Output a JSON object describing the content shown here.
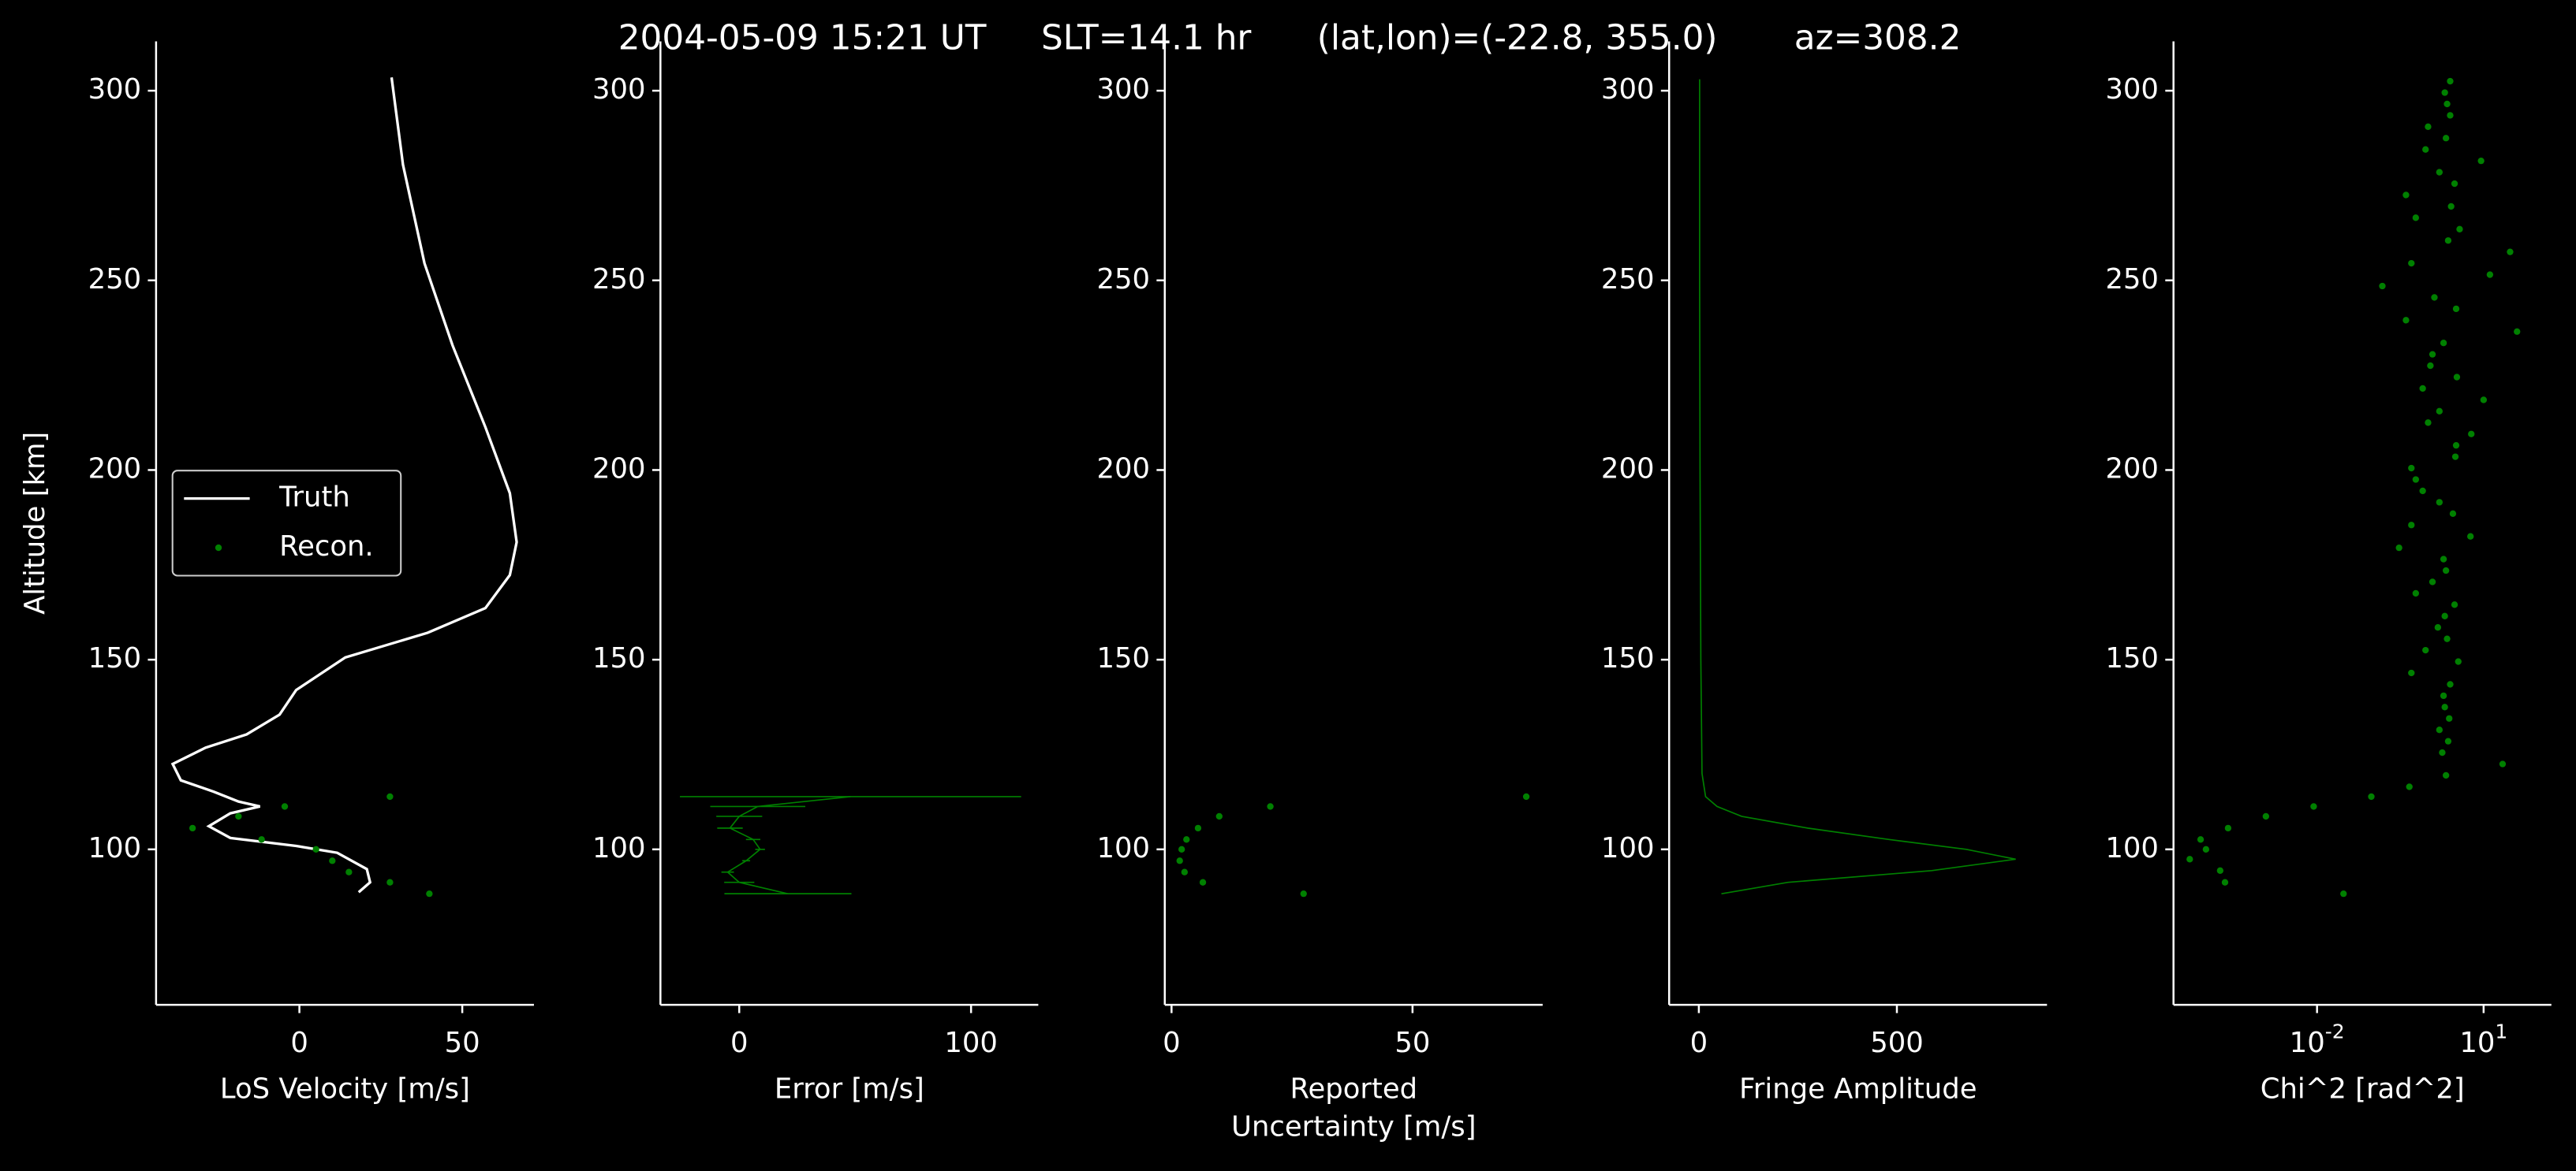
{
  "title": "2004-05-09 15:21 UT     SLT=14.1 hr      (lat,lon)=(-22.8, 355.0)       az=308.2",
  "chart_data": [
    {
      "type": "line",
      "ylabel": "Altitude [km]",
      "xlabel": "LoS Velocity [m/s]",
      "xlim": [
        -44,
        72
      ],
      "xticks": [
        0,
        50
      ],
      "ylim": [
        59,
        313
      ],
      "yticks": [
        100,
        150,
        200,
        250,
        300
      ],
      "legend": "center left",
      "series": [
        {
          "name": "Truth",
          "color": "#ffffff",
          "type": "line",
          "x": [
            28.3,
            31.8,
            38.4,
            47,
            57.1,
            64.6,
            66.7,
            64.6,
            57.1,
            39.4,
            14.1,
            -1,
            -6.1,
            -16.2,
            -28.8,
            -38.9,
            -36.4,
            -26.3,
            -18.7,
            -12.1,
            -21.2,
            -27.8,
            -21.2,
            -1,
            11.6,
            20.7,
            21.7,
            18.2
          ],
          "y": [
            303.5,
            280.5,
            254.5,
            232.9,
            211.3,
            193.9,
            181,
            172.3,
            163.6,
            157.1,
            150.6,
            142,
            135.5,
            130.3,
            126.8,
            122.5,
            118.2,
            115.2,
            112.6,
            111.3,
            109.5,
            106.1,
            103,
            100.9,
            99.1,
            94.8,
            91.3,
            88.7
          ]
        },
        {
          "name": "Recon.",
          "color": "#008000",
          "type": "scatter",
          "x": [
            27.8,
            -4.5,
            -18.7,
            -32.8,
            -11.6,
            5.1,
            10.1,
            15.2,
            27.8,
            39.9
          ],
          "y": [
            113.9,
            111.3,
            108.7,
            105.6,
            102.6,
            100,
            97,
            94,
            91.3,
            88.3
          ]
        }
      ]
    },
    {
      "type": "errorbar",
      "xlabel": "Error [m/s]",
      "xlim": [
        -34,
        129
      ],
      "xticks": [
        0,
        100
      ],
      "ylim": [
        59,
        313
      ],
      "yticks": [
        100,
        150,
        200,
        250,
        300
      ],
      "series": [
        {
          "color": "#008000",
          "x": [
            48,
            8,
            0,
            -4,
            6,
            9,
            3,
            -5,
            0,
            21
          ],
          "xerr": [
            73.6,
            20.5,
            9.9,
            5.5,
            3.1,
            2.1,
            1.7,
            2.7,
            6.5,
            27.4
          ],
          "y": [
            113.9,
            111.3,
            108.7,
            105.6,
            102.6,
            100,
            97,
            94,
            91.3,
            88.3
          ]
        }
      ]
    },
    {
      "type": "scatter",
      "xlabel": [
        "Reported",
        "Uncertainty [m/s]"
      ],
      "xlim": [
        -1.4,
        77
      ],
      "xticks": [
        0,
        50
      ],
      "ylim": [
        59,
        313
      ],
      "yticks": [
        100,
        150,
        200,
        250,
        300
      ],
      "series": [
        {
          "color": "#008000",
          "x": [
            73.6,
            20.5,
            9.9,
            5.5,
            3.1,
            2.1,
            1.7,
            2.7,
            6.5,
            27.4
          ],
          "y": [
            113.9,
            111.3,
            108.7,
            105.6,
            102.6,
            100,
            97,
            94,
            91.3,
            88.3
          ]
        }
      ]
    },
    {
      "type": "line",
      "xlabel": "Fringe Amplitude",
      "xlim": [
        -75,
        879
      ],
      "xticks": [
        0,
        500
      ],
      "ylim": [
        59,
        313
      ],
      "yticks": [
        100,
        150,
        200,
        250,
        300
      ],
      "series": [
        {
          "color": "#008000",
          "x": [
            57,
            225,
            588,
            800,
            675,
            480,
            275,
            108,
            46,
            17,
            8,
            5,
            3,
            2,
            2
          ],
          "y": [
            88.3,
            91.3,
            94.4,
            97.4,
            100,
            102.6,
            105.6,
            108.7,
            111.3,
            113.9,
            120,
            150,
            200,
            250,
            303
          ]
        }
      ]
    },
    {
      "type": "scatter",
      "xlabel": "Chi^2 [rad^2]",
      "xscale": "log",
      "xlim": [
        2.6e-05,
        166
      ],
      "xticks": [
        {
          "value": 0.01,
          "label": "10^-2"
        },
        {
          "value": 10,
          "label": "10^1"
        }
      ],
      "ylim": [
        59,
        313
      ],
      "yticks": [
        100,
        150,
        200,
        250,
        300
      ],
      "series": [
        {
          "color": "#008000",
          "x": [
            0.03,
            0.00022,
            0.00018,
            5.1e-05,
            0.0001,
            8e-05,
            0.00025,
            0.0012,
            0.0087,
            0.095,
            0.46,
            2.1,
            22,
            1.8,
            2.3,
            1.6,
            2.4,
            2.0,
            1.9,
            2.5,
            0.5,
            3.5,
            0.9,
            2.2,
            1.5,
            2.0,
            3.0,
            0.6,
            1.2,
            2.1,
            1.9,
            0.3,
            5.8,
            0.5,
            2.8,
            1.6,
            0.8,
            0.6,
            0.5,
            3.1,
            3.2,
            6.0,
            1.0,
            1.6,
            10,
            0.8,
            3.3,
            1.1,
            1.2,
            1.9,
            40,
            0.4,
            3.2,
            1.3,
            0.15,
            13,
            0.5,
            30,
            2.3,
            3.7,
            0.6,
            2.6,
            0.4,
            3.0,
            1.6,
            9,
            0.9,
            2.1,
            1.0,
            2.5,
            2.2,
            2.0,
            2.5
          ],
          "y": [
            88.3,
            91.3,
            94.4,
            97.4,
            100,
            102.6,
            105.6,
            108.7,
            111.3,
            113.9,
            116.5,
            119.5,
            122.5,
            125.5,
            128.5,
            131.5,
            134.5,
            137.5,
            140.5,
            143.5,
            146.5,
            149.5,
            152.5,
            155.5,
            158.5,
            161.5,
            164.5,
            167.5,
            170.5,
            173.5,
            176.5,
            179.5,
            182.5,
            185.5,
            188.5,
            191.5,
            194.5,
            197.5,
            200.5,
            203.5,
            206.5,
            209.5,
            212.5,
            215.5,
            218.5,
            221.5,
            224.5,
            227.5,
            230.5,
            233.5,
            236.5,
            239.5,
            242.5,
            245.5,
            248.5,
            251.5,
            254.5,
            257.5,
            260.5,
            263.5,
            266.5,
            269.5,
            272.5,
            275.5,
            278.5,
            281.5,
            284.5,
            287.5,
            290.5,
            293.5,
            296.5,
            299.5,
            302.5
          ]
        }
      ]
    }
  ]
}
